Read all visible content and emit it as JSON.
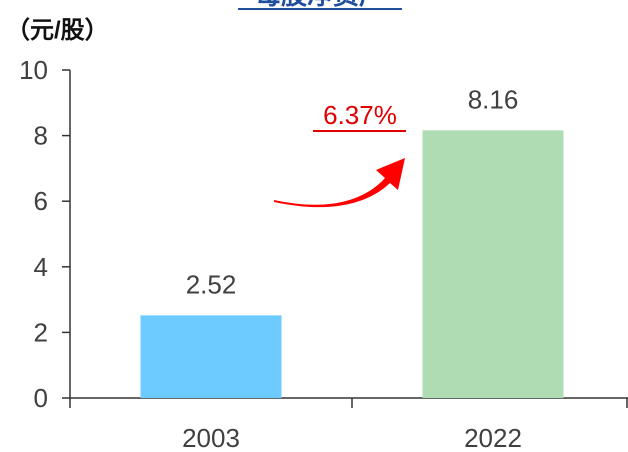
{
  "chart_data": {
    "type": "bar",
    "title": "每股净资产",
    "y_label": "（元/股）",
    "categories": [
      "2003",
      "2022"
    ],
    "values": [
      2.52,
      8.16
    ],
    "colors": [
      "#6ecbff",
      "#b0dcb4"
    ],
    "ylim": [
      0,
      10
    ],
    "yticks": [
      0,
      2,
      4,
      6,
      8,
      10
    ],
    "annotation": "6.37%"
  }
}
